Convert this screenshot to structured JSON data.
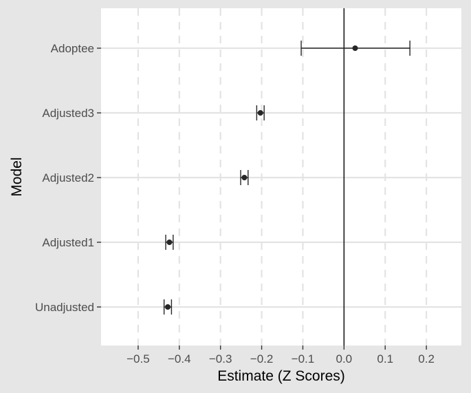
{
  "chart_data": {
    "type": "scatter",
    "variant": "forest-plot-with-error-bars",
    "title": "",
    "xlabel": "Estimate (Z Scores)",
    "ylabel": "Model",
    "xlim": [
      -0.59,
      0.285
    ],
    "x_ticks": [
      -0.5,
      -0.4,
      -0.3,
      -0.2,
      -0.1,
      0.0,
      0.1,
      0.2
    ],
    "x_tick_labels": [
      "−0.5",
      "−0.4",
      "−0.3",
      "−0.2",
      "−0.1",
      "0.0",
      "0.1",
      "0.2"
    ],
    "categories": [
      "Adoptee",
      "Adjusted3",
      "Adjusted2",
      "Adjusted1",
      "Unadjusted"
    ],
    "points": [
      {
        "label": "Adoptee",
        "estimate": 0.027,
        "lower": -0.104,
        "upper": 0.16
      },
      {
        "label": "Adjusted3",
        "estimate": -0.203,
        "lower": -0.212,
        "upper": -0.194
      },
      {
        "label": "Adjusted2",
        "estimate": -0.242,
        "lower": -0.251,
        "upper": -0.233
      },
      {
        "label": "Adjusted1",
        "estimate": -0.424,
        "lower": -0.433,
        "upper": -0.415
      },
      {
        "label": "Unadjusted",
        "estimate": -0.428,
        "lower": -0.437,
        "upper": -0.419
      }
    ],
    "reference_line_x": 0.0,
    "grid": true,
    "legend": "none",
    "colors": {
      "background": "#e6e6e6",
      "panel": "#ffffff",
      "grid": "#e3e3e3",
      "marks": "#262626",
      "reference_line": "#1a1a1a"
    }
  }
}
